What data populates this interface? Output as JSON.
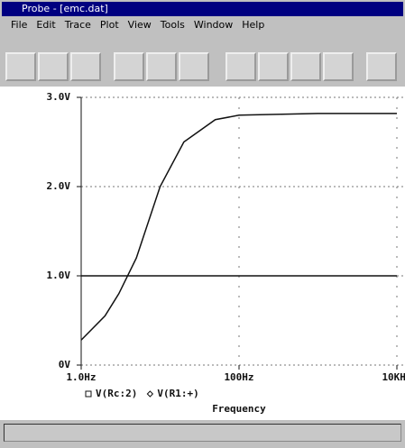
{
  "window": {
    "title": "Probe - [emc.dat]",
    "menu": [
      "File",
      "Edit",
      "Trace",
      "Plot",
      "View",
      "Tools",
      "Window",
      "Help"
    ]
  },
  "chart_data": {
    "type": "line",
    "xscale": "log",
    "x": [
      1,
      2,
      3,
      5,
      10,
      20,
      50,
      100,
      1000,
      10000
    ],
    "series": [
      {
        "name": "V(Rc:2)",
        "color": "#111111",
        "marker": "square",
        "values": [
          0.28,
          0.55,
          0.8,
          1.2,
          2.0,
          2.5,
          2.75,
          2.8,
          2.82,
          2.82
        ]
      },
      {
        "name": "V(R1:+)",
        "color": "#111111",
        "marker": "diamond",
        "values": [
          1,
          1,
          1,
          1,
          1,
          1,
          1,
          1,
          1,
          1
        ]
      }
    ],
    "xlim": [
      1,
      10000
    ],
    "xticks": [
      {
        "value": 1,
        "label": "1.0Hz"
      },
      {
        "value": 100,
        "label": "100Hz"
      },
      {
        "value": 10000,
        "label": "10KHz"
      }
    ],
    "ylim": [
      0,
      3
    ],
    "yticks": [
      {
        "value": 0,
        "label": "0V"
      },
      {
        "value": 1,
        "label": "1.0V"
      },
      {
        "value": 2,
        "label": "2.0V"
      },
      {
        "value": 3,
        "label": "3.0V"
      }
    ],
    "grid": true,
    "xlabel": "Frequency"
  }
}
